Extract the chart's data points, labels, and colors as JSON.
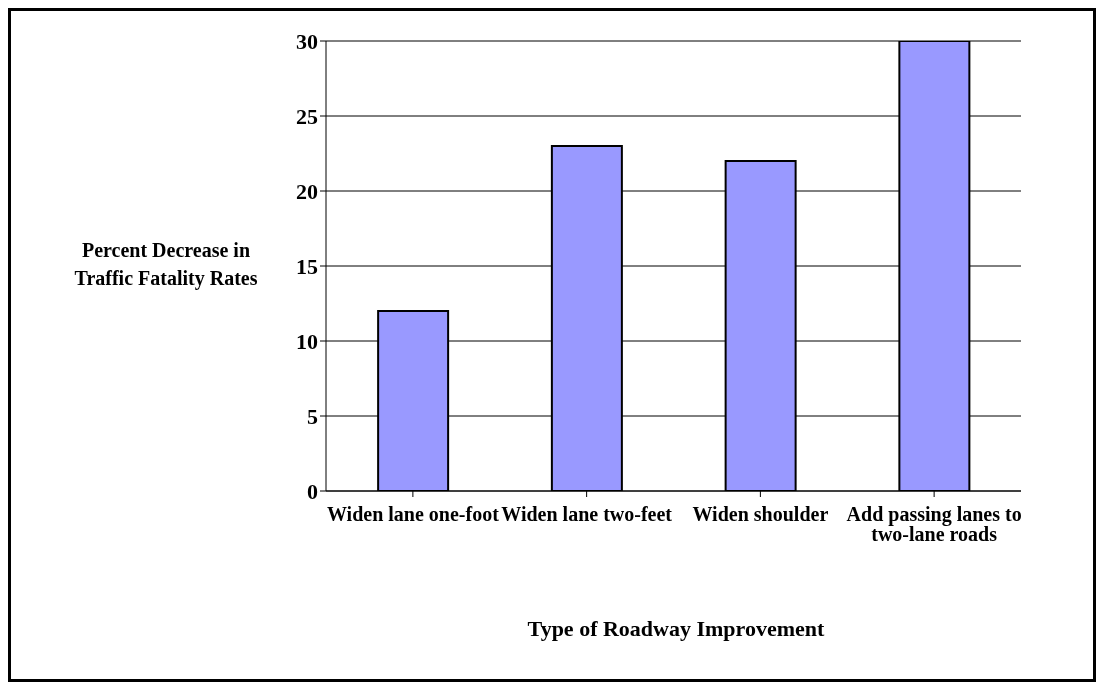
{
  "chart_data": {
    "type": "bar",
    "ylabel": "Percent Decrease in Traffic Fatality Rates",
    "xlabel": "Type of Roadway Improvement",
    "categories": [
      "Widen lane one-foot",
      "Widen lane two-feet",
      "Widen shoulder",
      "Add passing lanes to two-lane roads"
    ],
    "values": [
      12,
      23,
      22,
      30
    ],
    "color": "#9999ff",
    "ylim": [
      0,
      30
    ],
    "yticks": [
      0,
      5,
      10,
      15,
      20,
      25,
      30
    ],
    "grid": "y",
    "legend": false
  }
}
